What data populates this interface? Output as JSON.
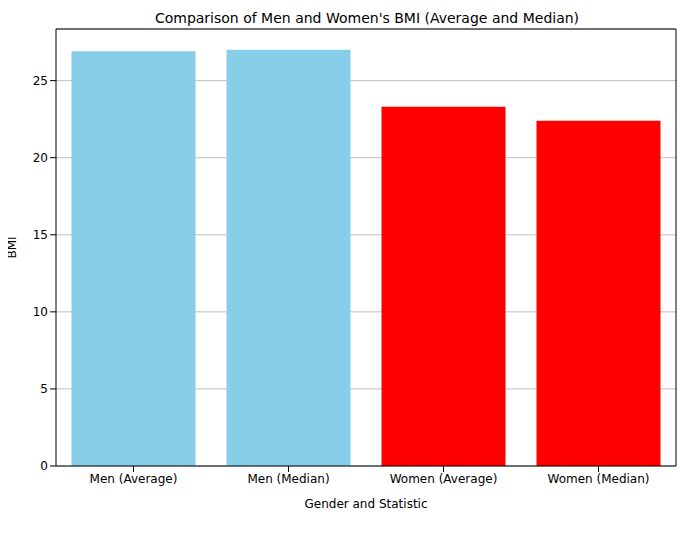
{
  "chart_data": {
    "type": "bar",
    "title": "Comparison of Men and Women's BMI (Average and Median)",
    "x_label": "Gender and Statistic",
    "y_label": "BMI",
    "categories": [
      "Men (Average)",
      "Men (Median)",
      "Women (Average)",
      "Women (Median)"
    ],
    "values": [
      26.9,
      27.0,
      23.3,
      22.4
    ],
    "colors": [
      "#87ceeb",
      "#87ceeb",
      "#ff0000",
      "#ff0000"
    ],
    "ylim": [
      0,
      28.35
    ],
    "yticks": [
      0,
      5,
      10,
      15,
      20,
      25
    ],
    "grid": true
  }
}
